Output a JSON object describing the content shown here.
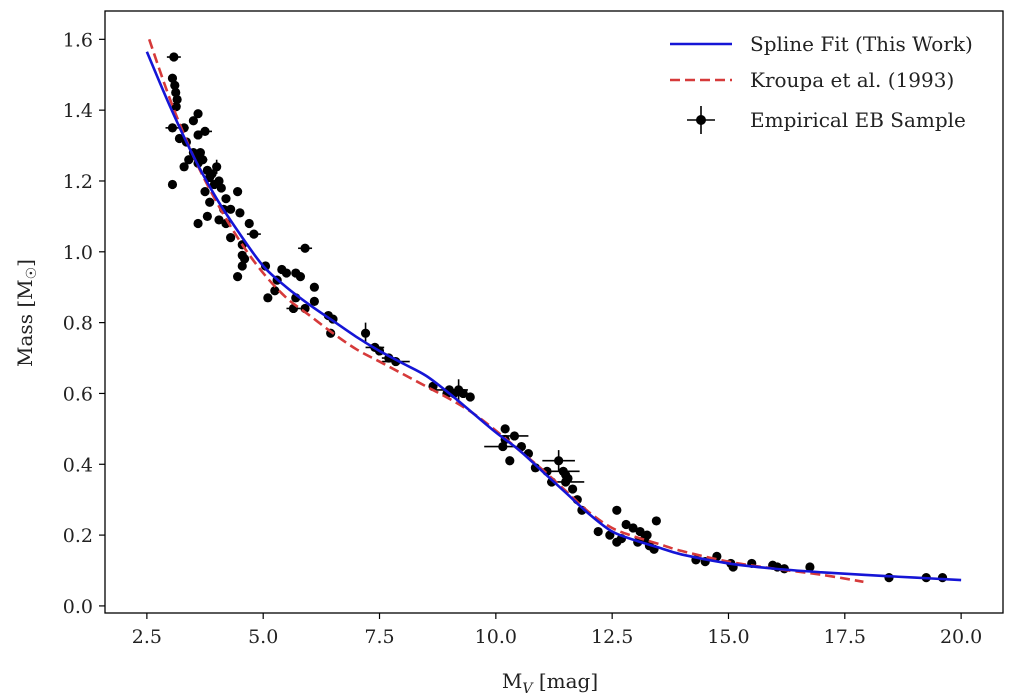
{
  "chart_data": {
    "type": "scatter",
    "xlabel": "M_V [mag]",
    "ylabel": "Mass [M_sun]",
    "xlim": [
      1.6,
      20.9
    ],
    "ylim": [
      -0.02,
      1.68
    ],
    "xticks": [
      "2.5",
      "5.0",
      "7.5",
      "10.0",
      "12.5",
      "15.0",
      "17.5",
      "20.0"
    ],
    "yticks": [
      "0.0",
      "0.2",
      "0.4",
      "0.6",
      "0.8",
      "1.0",
      "1.2",
      "1.4",
      "1.6"
    ],
    "legend_position": "top-right",
    "series": [
      {
        "name": "Spline Fit (This Work)",
        "kind": "line",
        "color": "#1515d6",
        "x": [
          2.5,
          3.0,
          3.5,
          4.0,
          4.5,
          5.0,
          5.5,
          6.0,
          6.5,
          7.0,
          7.5,
          8.0,
          8.5,
          9.0,
          9.5,
          10.0,
          10.5,
          11.0,
          11.5,
          12.0,
          12.5,
          13.0,
          13.5,
          14.0,
          15.0,
          16.0,
          17.0,
          18.0,
          19.0,
          20.0
        ],
        "y": [
          1.565,
          1.41,
          1.27,
          1.15,
          1.05,
          0.96,
          0.9,
          0.85,
          0.805,
          0.76,
          0.72,
          0.685,
          0.65,
          0.6,
          0.545,
          0.49,
          0.44,
          0.38,
          0.32,
          0.26,
          0.21,
          0.185,
          0.165,
          0.145,
          0.12,
          0.105,
          0.095,
          0.087,
          0.08,
          0.073
        ]
      },
      {
        "name": "Kroupa et al. (1993)",
        "kind": "dashed-line",
        "color": "#d63a3a",
        "x": [
          2.55,
          3.0,
          3.5,
          4.0,
          4.5,
          5.0,
          5.5,
          6.0,
          6.5,
          7.0,
          7.5,
          8.0,
          8.5,
          9.0,
          9.5,
          10.0,
          10.5,
          11.0,
          11.5,
          12.0,
          12.5,
          13.0,
          13.5,
          14.0,
          15.0,
          16.0,
          17.0,
          17.9
        ],
        "y": [
          1.6,
          1.43,
          1.27,
          1.14,
          1.03,
          0.94,
          0.87,
          0.82,
          0.77,
          0.725,
          0.69,
          0.655,
          0.62,
          0.585,
          0.545,
          0.495,
          0.44,
          0.385,
          0.325,
          0.265,
          0.22,
          0.195,
          0.175,
          0.155,
          0.125,
          0.105,
          0.088,
          0.068
        ]
      },
      {
        "name": "Empirical EB Sample",
        "kind": "errorbar",
        "color": "#000000",
        "points": [
          [
            3.08,
            1.55,
            0.15,
            0.005
          ],
          [
            3.05,
            1.49,
            0.06,
            0.01
          ],
          [
            3.1,
            1.47,
            0.06,
            0.01
          ],
          [
            3.12,
            1.45,
            0.06,
            0.01
          ],
          [
            3.15,
            1.43,
            0.06,
            0.01
          ],
          [
            3.13,
            1.41,
            0.06,
            0.01
          ],
          [
            3.05,
            1.35,
            0.15,
            0.01
          ],
          [
            3.3,
            1.35,
            0.1,
            0.01
          ],
          [
            3.5,
            1.37,
            0.06,
            0.01
          ],
          [
            3.6,
            1.39,
            0.06,
            0.01
          ],
          [
            3.75,
            1.34,
            0.15,
            0.01
          ],
          [
            3.6,
            1.33,
            0.06,
            0.01
          ],
          [
            3.35,
            1.31,
            0.06,
            0.01
          ],
          [
            3.2,
            1.32,
            0.06,
            0.01
          ],
          [
            3.5,
            1.28,
            0.08,
            0.01
          ],
          [
            3.55,
            1.27,
            0.06,
            0.01
          ],
          [
            3.65,
            1.28,
            0.06,
            0.01
          ],
          [
            3.7,
            1.26,
            0.1,
            0.01
          ],
          [
            3.4,
            1.26,
            0.06,
            0.01
          ],
          [
            3.6,
            1.25,
            0.06,
            0.01
          ],
          [
            3.3,
            1.24,
            0.06,
            0.01
          ],
          [
            3.8,
            1.23,
            0.06,
            0.01
          ],
          [
            3.9,
            1.22,
            0.06,
            0.01
          ],
          [
            4.0,
            1.24,
            0.06,
            0.02
          ],
          [
            3.85,
            1.21,
            0.06,
            0.01
          ],
          [
            4.05,
            1.2,
            0.06,
            0.01
          ],
          [
            3.95,
            1.19,
            0.06,
            0.01
          ],
          [
            3.05,
            1.19,
            0.06,
            0.01
          ],
          [
            3.75,
            1.17,
            0.06,
            0.01
          ],
          [
            4.1,
            1.18,
            0.06,
            0.01
          ],
          [
            4.45,
            1.17,
            0.06,
            0.01
          ],
          [
            4.2,
            1.15,
            0.06,
            0.01
          ],
          [
            3.85,
            1.14,
            0.06,
            0.01
          ],
          [
            4.15,
            1.12,
            0.06,
            0.01
          ],
          [
            4.3,
            1.12,
            0.06,
            0.01
          ],
          [
            4.5,
            1.11,
            0.06,
            0.01
          ],
          [
            3.8,
            1.1,
            0.06,
            0.01
          ],
          [
            4.05,
            1.09,
            0.06,
            0.01
          ],
          [
            4.2,
            1.08,
            0.06,
            0.01
          ],
          [
            3.6,
            1.08,
            0.06,
            0.01
          ],
          [
            4.7,
            1.08,
            0.06,
            0.01
          ],
          [
            4.8,
            1.05,
            0.15,
            0.01
          ],
          [
            4.3,
            1.04,
            0.06,
            0.01
          ],
          [
            4.55,
            1.02,
            0.06,
            0.01
          ],
          [
            4.55,
            0.99,
            0.06,
            0.01
          ],
          [
            4.6,
            0.98,
            0.06,
            0.01
          ],
          [
            4.55,
            0.96,
            0.06,
            0.01
          ],
          [
            5.05,
            0.96,
            0.06,
            0.01
          ],
          [
            4.45,
            0.93,
            0.06,
            0.01
          ],
          [
            5.4,
            0.95,
            0.06,
            0.01
          ],
          [
            5.5,
            0.94,
            0.06,
            0.01
          ],
          [
            5.7,
            0.94,
            0.06,
            0.01
          ],
          [
            5.8,
            0.93,
            0.06,
            0.01
          ],
          [
            5.3,
            0.92,
            0.06,
            0.01
          ],
          [
            5.9,
            1.01,
            0.15,
            0.005
          ],
          [
            6.1,
            0.9,
            0.06,
            0.01
          ],
          [
            5.25,
            0.89,
            0.06,
            0.01
          ],
          [
            5.1,
            0.87,
            0.06,
            0.01
          ],
          [
            5.7,
            0.87,
            0.06,
            0.01
          ],
          [
            5.65,
            0.84,
            0.15,
            0.01
          ],
          [
            5.9,
            0.84,
            0.06,
            0.01
          ],
          [
            6.1,
            0.86,
            0.06,
            0.01
          ],
          [
            6.4,
            0.82,
            0.06,
            0.01
          ],
          [
            6.5,
            0.81,
            0.06,
            0.01
          ],
          [
            6.45,
            0.77,
            0.06,
            0.01
          ],
          [
            7.2,
            0.77,
            0.06,
            0.03
          ],
          [
            7.4,
            0.73,
            0.2,
            0.01
          ],
          [
            7.5,
            0.72,
            0.06,
            0.01
          ],
          [
            7.7,
            0.7,
            0.15,
            0.01
          ],
          [
            7.85,
            0.69,
            0.3,
            0.01
          ],
          [
            8.65,
            0.62,
            0.06,
            0.01
          ],
          [
            9.0,
            0.61,
            0.4,
            0.01
          ],
          [
            8.95,
            0.6,
            0.06,
            0.01
          ],
          [
            9.1,
            0.6,
            0.06,
            0.01
          ],
          [
            9.2,
            0.61,
            0.06,
            0.03
          ],
          [
            9.3,
            0.6,
            0.06,
            0.01
          ],
          [
            9.45,
            0.59,
            0.06,
            0.01
          ],
          [
            10.2,
            0.5,
            0.06,
            0.01
          ],
          [
            10.4,
            0.48,
            0.3,
            0.01
          ],
          [
            10.15,
            0.45,
            0.4,
            0.01
          ],
          [
            10.2,
            0.47,
            0.06,
            0.01
          ],
          [
            10.55,
            0.45,
            0.06,
            0.01
          ],
          [
            10.7,
            0.43,
            0.06,
            0.01
          ],
          [
            10.3,
            0.41,
            0.06,
            0.01
          ],
          [
            10.85,
            0.39,
            0.06,
            0.01
          ],
          [
            11.1,
            0.38,
            0.06,
            0.01
          ],
          [
            11.35,
            0.41,
            0.35,
            0.03
          ],
          [
            11.45,
            0.38,
            0.35,
            0.01
          ],
          [
            11.5,
            0.37,
            0.06,
            0.01
          ],
          [
            11.55,
            0.36,
            0.06,
            0.01
          ],
          [
            11.2,
            0.35,
            0.06,
            0.01
          ],
          [
            11.5,
            0.35,
            0.4,
            0.01
          ],
          [
            11.65,
            0.33,
            0.06,
            0.01
          ],
          [
            11.75,
            0.3,
            0.06,
            0.01
          ],
          [
            11.85,
            0.27,
            0.06,
            0.01
          ],
          [
            12.6,
            0.27,
            0.06,
            0.01
          ],
          [
            12.8,
            0.23,
            0.06,
            0.01
          ],
          [
            12.95,
            0.22,
            0.06,
            0.01
          ],
          [
            13.1,
            0.21,
            0.06,
            0.01
          ],
          [
            13.25,
            0.2,
            0.06,
            0.01
          ],
          [
            13.45,
            0.24,
            0.06,
            0.01
          ],
          [
            12.2,
            0.21,
            0.06,
            0.01
          ],
          [
            12.45,
            0.2,
            0.06,
            0.01
          ],
          [
            12.6,
            0.18,
            0.06,
            0.01
          ],
          [
            12.7,
            0.19,
            0.06,
            0.01
          ],
          [
            13.05,
            0.18,
            0.06,
            0.01
          ],
          [
            13.2,
            0.19,
            0.06,
            0.01
          ],
          [
            13.3,
            0.17,
            0.06,
            0.01
          ],
          [
            13.4,
            0.16,
            0.06,
            0.01
          ],
          [
            14.3,
            0.13,
            0.06,
            0.01
          ],
          [
            14.5,
            0.125,
            0.06,
            0.01
          ],
          [
            14.75,
            0.14,
            0.06,
            0.01
          ],
          [
            15.05,
            0.12,
            0.06,
            0.01
          ],
          [
            15.1,
            0.11,
            0.06,
            0.01
          ],
          [
            15.5,
            0.12,
            0.06,
            0.01
          ],
          [
            15.95,
            0.115,
            0.06,
            0.01
          ],
          [
            16.05,
            0.11,
            0.06,
            0.01
          ],
          [
            16.2,
            0.105,
            0.06,
            0.01
          ],
          [
            16.75,
            0.11,
            0.06,
            0.01
          ],
          [
            18.45,
            0.08,
            0.06,
            0.01
          ],
          [
            19.25,
            0.08,
            0.06,
            0.01
          ],
          [
            19.6,
            0.08,
            0.06,
            0.01
          ]
        ]
      }
    ]
  }
}
